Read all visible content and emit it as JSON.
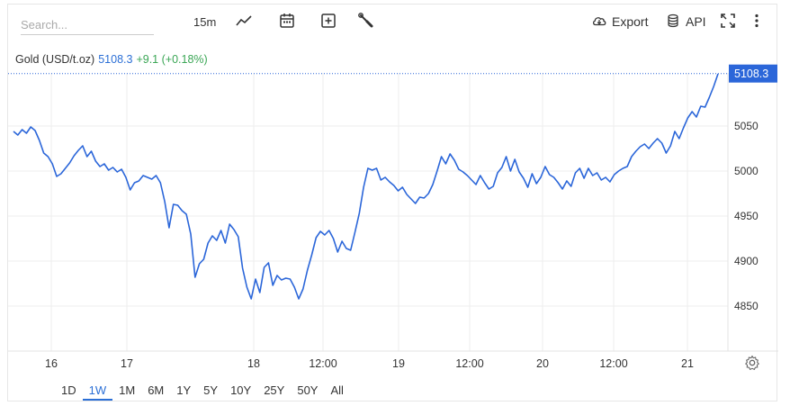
{
  "toolbar": {
    "search_placeholder": "Search...",
    "interval": "15m",
    "export_label": "Export",
    "api_label": "API",
    "icons": [
      "chart-type-icon",
      "calendar-icon",
      "add-indicator-icon",
      "wrench-icon",
      "cloud-download-icon",
      "database-icon",
      "fullscreen-icon",
      "more-icon"
    ]
  },
  "legend": {
    "symbol": "Gold (USD/t.oz)",
    "value": "5108.3",
    "change": "+9.1 (+0.18%)"
  },
  "ranges": {
    "items": [
      "1D",
      "1W",
      "1M",
      "6M",
      "1Y",
      "5Y",
      "10Y",
      "25Y",
      "50Y",
      "All"
    ],
    "active": "1W"
  },
  "colors": {
    "line": "#2b66d9",
    "last_price_bg": "#2b66d9",
    "change_positive": "#3aa655",
    "grid": "#eeeeee"
  },
  "chart_data": {
    "type": "line",
    "title": "Gold (USD/t.oz)",
    "xlabel": "",
    "ylabel": "",
    "x_ticks": [
      "16",
      "17",
      "18",
      "12:00",
      "19",
      "12:00",
      "20",
      "12:00",
      "21"
    ],
    "y_ticks": [
      4850,
      4900,
      4950,
      5000,
      5050
    ],
    "ylim": [
      4800,
      5120
    ],
    "last_price": 5108.3,
    "y_axis_side": "right",
    "grid": true,
    "series": [
      {
        "name": "Gold (USD/t.oz)",
        "values": [
          5044,
          5040,
          5046,
          5042,
          5049,
          5045,
          5034,
          5020,
          5016,
          5008,
          4994,
          4997,
          5003,
          5009,
          5017,
          5023,
          5028,
          5016,
          5022,
          5011,
          5005,
          5008,
          5001,
          5004,
          4999,
          5002,
          4993,
          4979,
          4987,
          4989,
          4995,
          4993,
          4991,
          4995,
          4987,
          4966,
          4937,
          4963,
          4962,
          4956,
          4952,
          4930,
          4882,
          4897,
          4902,
          4920,
          4928,
          4923,
          4934,
          4920,
          4941,
          4935,
          4927,
          4892,
          4871,
          4858,
          4880,
          4865,
          4893,
          4898,
          4873,
          4884,
          4879,
          4881,
          4880,
          4871,
          4858,
          4869,
          4890,
          4907,
          4926,
          4933,
          4929,
          4934,
          4925,
          4910,
          4922,
          4914,
          4912,
          4932,
          4953,
          4982,
          5003,
          5001,
          5003,
          4990,
          4993,
          4988,
          4984,
          4978,
          4982,
          4974,
          4969,
          4964,
          4971,
          4970,
          4975,
          4985,
          5000,
          5016,
          5008,
          5019,
          5012,
          5002,
          4999,
          4995,
          4990,
          4985,
          4995,
          4987,
          4980,
          4983,
          4998,
          5004,
          5016,
          5000,
          5013,
          4999,
          4992,
          4982,
          4997,
          4986,
          4993,
          5005,
          4996,
          4993,
          4987,
          4980,
          4989,
          4983,
          4998,
          5003,
          4992,
          5003,
          4995,
          4998,
          4990,
          4993,
          4988,
          4996,
          5000,
          5003,
          5005,
          5016,
          5022,
          5027,
          5030,
          5025,
          5031,
          5036,
          5031,
          5020,
          5028,
          5044,
          5036,
          5048,
          5059,
          5066,
          5060,
          5072,
          5071,
          5082,
          5094,
          5108
        ]
      }
    ]
  }
}
